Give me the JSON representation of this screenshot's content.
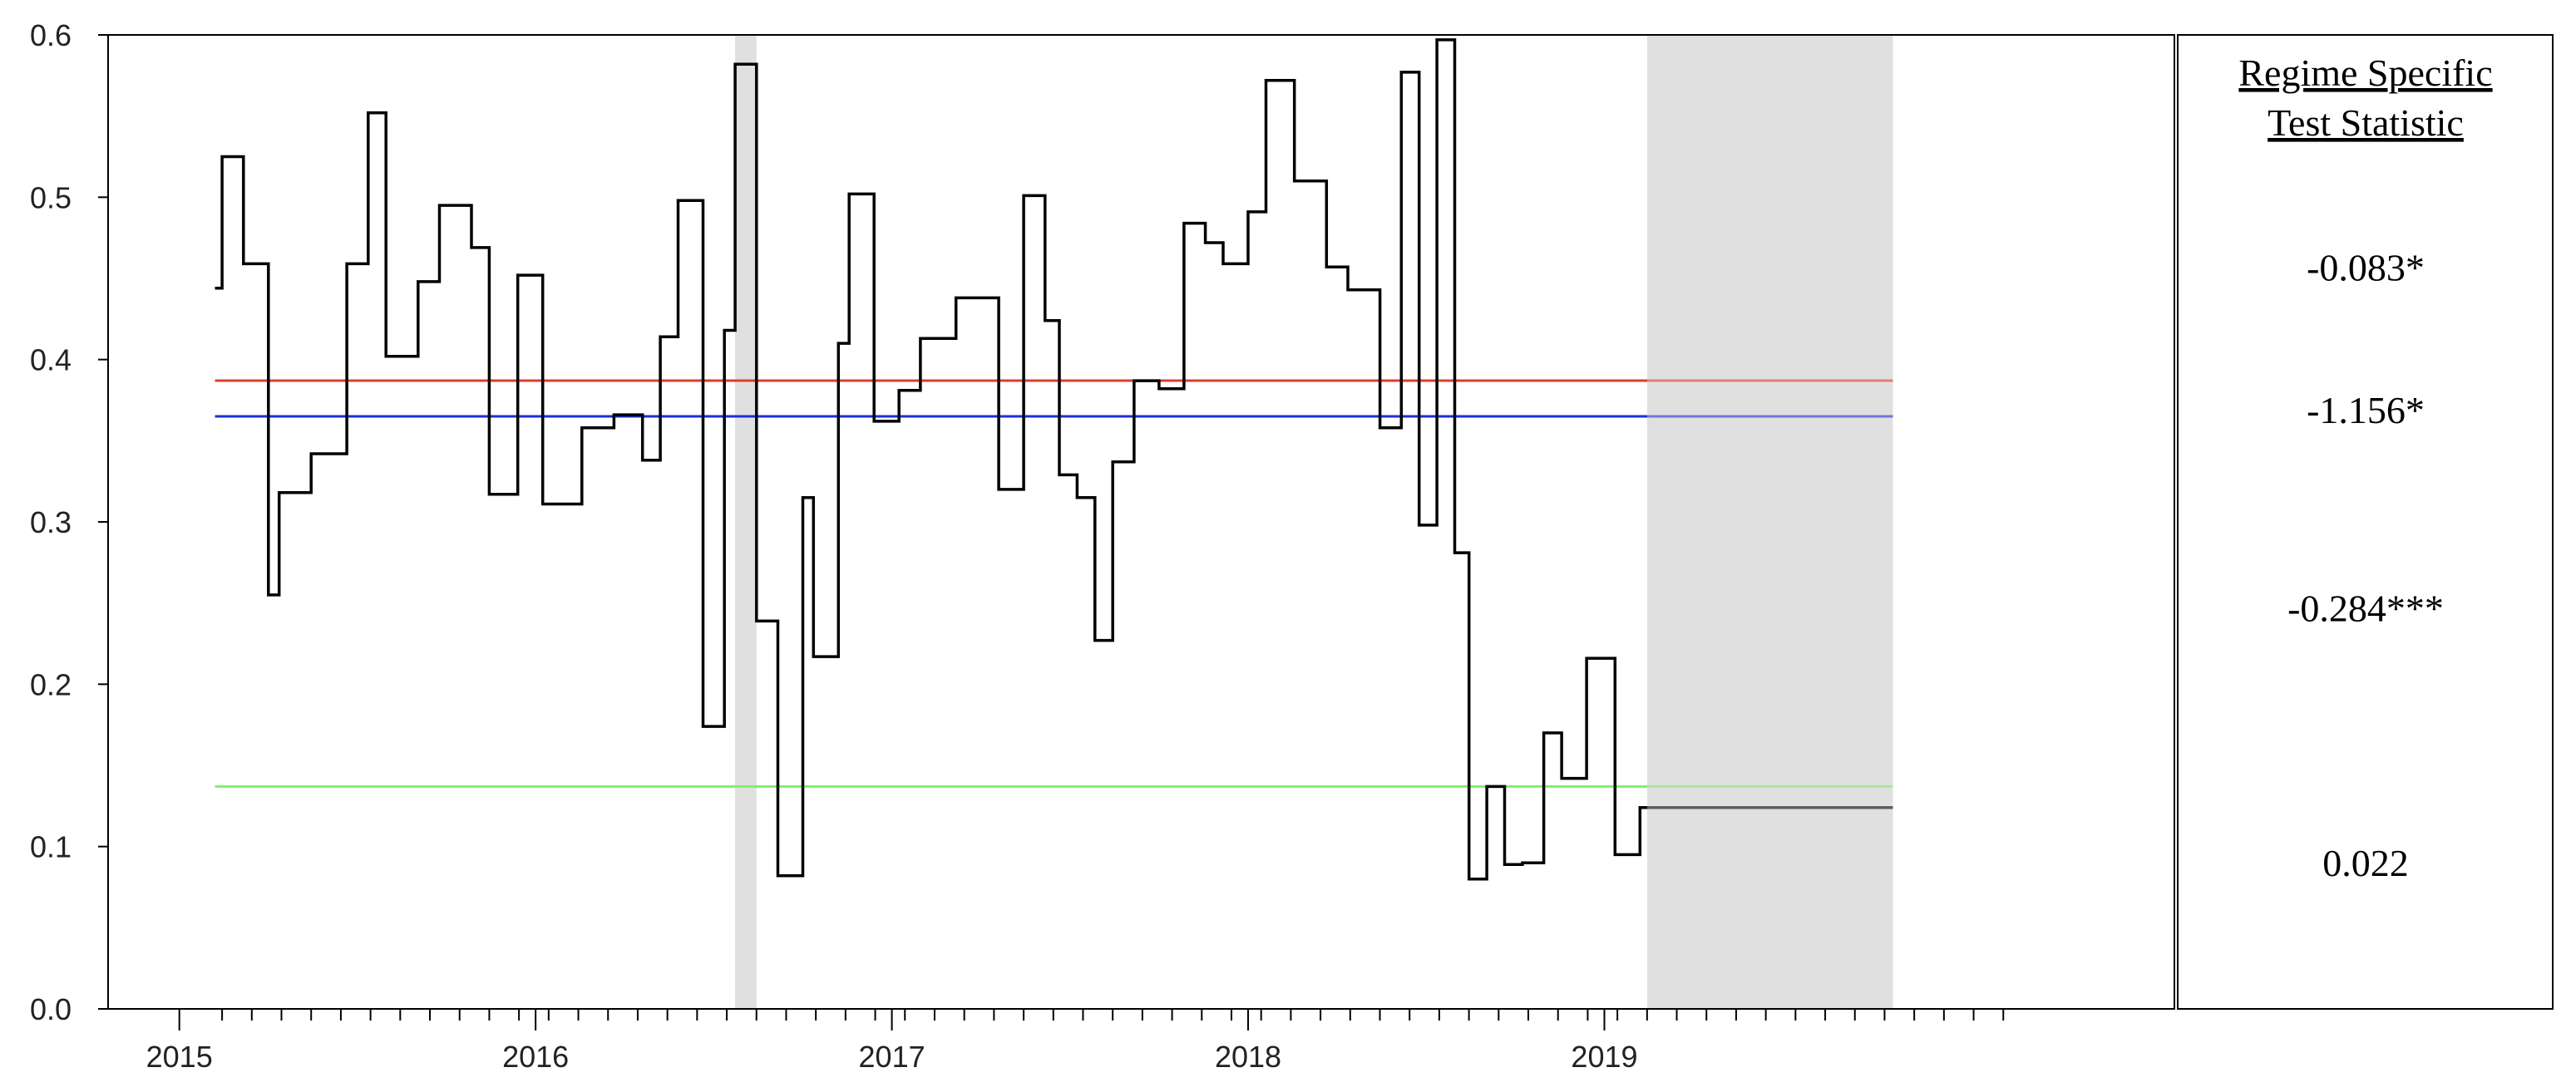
{
  "chart_data": {
    "type": "line",
    "title": "",
    "xlabel": "",
    "ylabel": "",
    "ylim": [
      0.0,
      0.6
    ],
    "yticks": [
      "0.0",
      "0.1",
      "0.2",
      "0.3",
      "0.4",
      "0.5",
      "0.6"
    ],
    "xlim": [
      2014.3,
      2020.1
    ],
    "xtick_labels": [
      {
        "label": "2015",
        "x": 2014.5
      },
      {
        "label": "2016",
        "x": 2015.5
      },
      {
        "label": "2017",
        "x": 2016.5
      },
      {
        "label": "2018",
        "x": 2017.5
      },
      {
        "label": "2019",
        "x": 2018.5
      }
    ],
    "minor_tick_step": 0.08333,
    "minor_tick_start": 2014.62,
    "minor_tick_end": 2019.62,
    "grid": false,
    "legend": "none",
    "shaded_regions": [
      {
        "x0": 2016.06,
        "x1": 2016.12,
        "color": "#e0e0e0"
      },
      {
        "x0": 2018.62,
        "x1": 2019.31,
        "color": "#e0e0e0"
      }
    ],
    "horizontal_lines": [
      {
        "y": 0.387,
        "color": "#e03c2a",
        "x0": 2014.6,
        "x1": 2019.31
      },
      {
        "y": 0.365,
        "color": "#1b2fd6",
        "x0": 2014.6,
        "x1": 2019.31
      },
      {
        "y": 0.137,
        "color": "#7ef06a",
        "x0": 2014.6,
        "x1": 2019.31
      }
    ],
    "series": [
      {
        "color": "#000000",
        "step": true,
        "x": [
          2014.6,
          2014.62,
          2014.68,
          2014.75,
          2014.78,
          2014.87,
          2014.97,
          2015.03,
          2015.08,
          2015.17,
          2015.23,
          2015.32,
          2015.37,
          2015.45,
          2015.52,
          2015.63,
          2015.72,
          2015.8,
          2015.85,
          2015.9,
          2015.97,
          2016.03,
          2016.06,
          2016.12,
          2016.18,
          2016.25,
          2016.28,
          2016.35,
          2016.38,
          2016.45,
          2016.52,
          2016.58,
          2016.68,
          2016.8,
          2016.87,
          2016.93,
          2016.97,
          2017.02,
          2017.07,
          2017.12,
          2017.18,
          2017.25,
          2017.32,
          2017.38,
          2017.43,
          2017.5,
          2017.55,
          2017.63,
          2017.72,
          2017.78,
          2017.87,
          2017.93,
          2017.98,
          2018.03,
          2018.08,
          2018.12,
          2018.17,
          2018.22,
          2018.27,
          2018.33,
          2018.38,
          2018.45,
          2018.53,
          2018.6,
          2018.65,
          2018.75,
          2018.82,
          2018.88,
          2018.92,
          2018.95,
          2019.02,
          2019.06,
          2019.12,
          2019.18,
          2019.25,
          2019.3,
          2019.31
        ],
        "y": [
          0.444,
          0.525,
          0.459,
          0.255,
          0.318,
          0.342,
          0.459,
          0.552,
          0.402,
          0.448,
          0.495,
          0.469,
          0.317,
          0.452,
          0.311,
          0.358,
          0.366,
          0.338,
          0.414,
          0.498,
          0.174,
          0.418,
          0.582,
          0.239,
          0.082,
          0.315,
          0.217,
          0.41,
          0.502,
          0.362,
          0.381,
          0.413,
          0.438,
          0.32,
          0.501,
          0.424,
          0.329,
          0.315,
          0.227,
          0.337,
          0.387,
          0.382,
          0.484,
          0.472,
          0.459,
          0.491,
          0.572,
          0.51,
          0.457,
          0.443,
          0.358,
          0.577,
          0.298,
          0.597,
          0.281,
          0.08,
          0.137,
          0.089,
          0.09,
          0.17,
          0.142,
          0.216,
          0.095,
          0.124,
          0.124,
          0.124,
          0.124,
          0.124,
          0.124,
          0.124,
          0.124,
          0.124,
          0.124,
          0.124,
          0.124,
          0.124,
          0.124
        ]
      }
    ]
  },
  "panel": {
    "heading_line1": "Regime Specific",
    "heading_line2": "Test Statistic",
    "stats": [
      {
        "value": "-0.083*",
        "level": 0.457
      },
      {
        "value": "-1.156*",
        "level": 0.369
      },
      {
        "value": "-0.284***",
        "level": 0.247
      },
      {
        "value": "0.022",
        "level": 0.09
      }
    ]
  }
}
